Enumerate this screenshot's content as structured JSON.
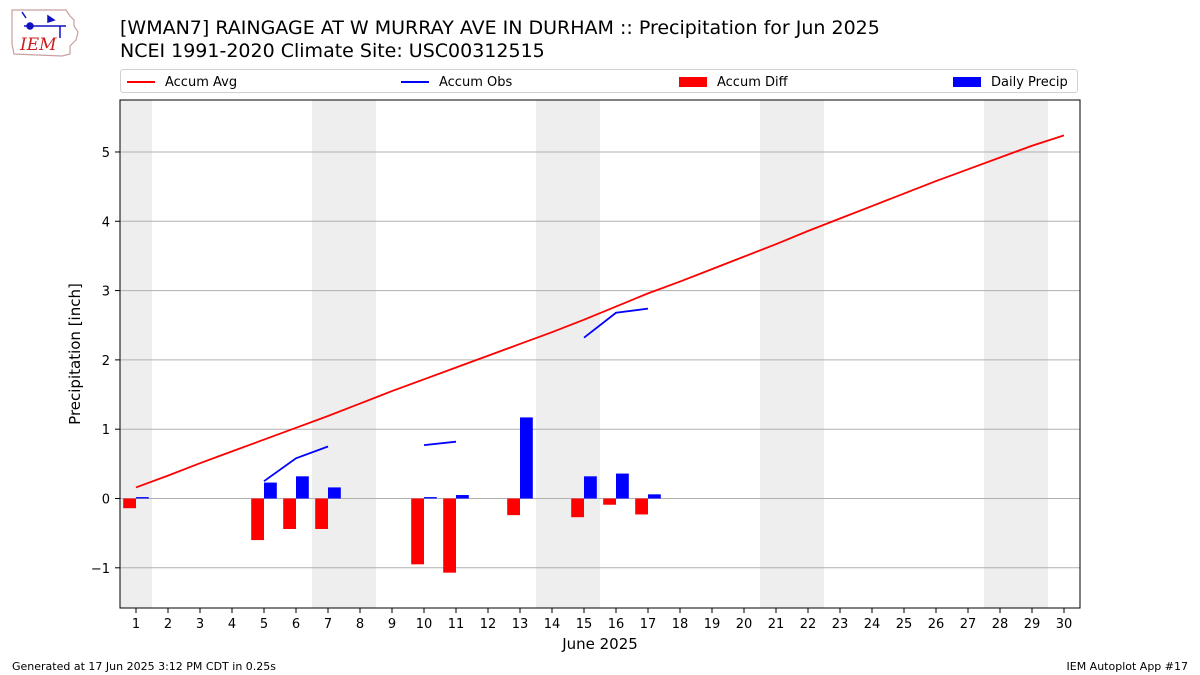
{
  "header": {
    "logo_text": "IEM",
    "title_line1": "[WMAN7] RAINGAGE AT W MURRAY AVE IN DURHAM :: Precipitation for Jun 2025",
    "title_line2": "NCEI 1991-2020 Climate Site: USC00312515"
  },
  "legend": [
    {
      "label": "Accum Avg",
      "kind": "line",
      "color": "#ff0000"
    },
    {
      "label": "Accum Obs",
      "kind": "line",
      "color": "#0000ff"
    },
    {
      "label": "Accum Diff",
      "kind": "box",
      "color": "#ff0000"
    },
    {
      "label": "Daily Precip",
      "kind": "box",
      "color": "#0000ff"
    }
  ],
  "footer": {
    "generated": "Generated at 17 Jun 2025 3:12 PM CDT in 0.25s",
    "app": "IEM Autoplot App #17"
  },
  "chart_data": {
    "type": "bar",
    "xlabel": "June 2025",
    "ylabel": "Precipitation [inch]",
    "xlim": [
      0.5,
      30.5
    ],
    "ylim": [
      -1.58,
      5.75
    ],
    "yticks": [
      -1,
      0,
      1,
      2,
      3,
      4,
      5
    ],
    "ytick_labels": [
      "−1",
      "0",
      "1",
      "2",
      "3",
      "4",
      "5"
    ],
    "grid": "horizontal",
    "legend_position": "top",
    "weekend_shading": [
      [
        0.5,
        1.5
      ],
      [
        6.5,
        8.5
      ],
      [
        13.5,
        15.5
      ],
      [
        20.5,
        22.5
      ],
      [
        27.5,
        29.5
      ]
    ],
    "shading_color": "#eeeeee",
    "days": [
      1,
      2,
      3,
      4,
      5,
      6,
      7,
      8,
      9,
      10,
      11,
      12,
      13,
      14,
      15,
      16,
      17,
      18,
      19,
      20,
      21,
      22,
      23,
      24,
      25,
      26,
      27,
      28,
      29,
      30
    ],
    "accum_avg": [
      0.16,
      0.33,
      0.51,
      0.68,
      0.85,
      1.02,
      1.19,
      1.37,
      1.55,
      1.72,
      1.89,
      2.06,
      2.23,
      2.4,
      2.58,
      2.77,
      2.96,
      3.13,
      3.31,
      3.49,
      3.67,
      3.86,
      4.04,
      4.22,
      4.4,
      4.58,
      4.75,
      4.92,
      5.09,
      5.24
    ],
    "accum_obs_segments": [
      [
        [
          5,
          0.25
        ],
        [
          6,
          0.58
        ],
        [
          7,
          0.75
        ]
      ],
      [
        [
          10,
          0.77
        ],
        [
          11,
          0.82
        ]
      ],
      [
        [
          15,
          2.32
        ],
        [
          16,
          2.68
        ],
        [
          17,
          2.74
        ]
      ]
    ],
    "accum_diff": [
      {
        "day": 1,
        "value": -0.14
      },
      {
        "day": 5,
        "value": -0.6
      },
      {
        "day": 6,
        "value": -0.44
      },
      {
        "day": 7,
        "value": -0.44
      },
      {
        "day": 10,
        "value": -0.95
      },
      {
        "day": 11,
        "value": -1.07
      },
      {
        "day": 13,
        "value": -0.24
      },
      {
        "day": 15,
        "value": -0.27
      },
      {
        "day": 16,
        "value": -0.09
      },
      {
        "day": 17,
        "value": -0.23
      }
    ],
    "daily_precip": [
      {
        "day": 1,
        "value": 0.02
      },
      {
        "day": 5,
        "value": 0.23
      },
      {
        "day": 6,
        "value": 0.32
      },
      {
        "day": 7,
        "value": 0.16
      },
      {
        "day": 10,
        "value": 0.02
      },
      {
        "day": 11,
        "value": 0.05
      },
      {
        "day": 13,
        "value": 1.17
      },
      {
        "day": 15,
        "value": 0.32
      },
      {
        "day": 16,
        "value": 0.36
      },
      {
        "day": 17,
        "value": 0.06
      }
    ],
    "colors": {
      "avg": "#ff0000",
      "obs": "#0000ff",
      "diff": "#ff0000",
      "precip": "#0000ff",
      "grid": "#b0b0b0"
    }
  }
}
